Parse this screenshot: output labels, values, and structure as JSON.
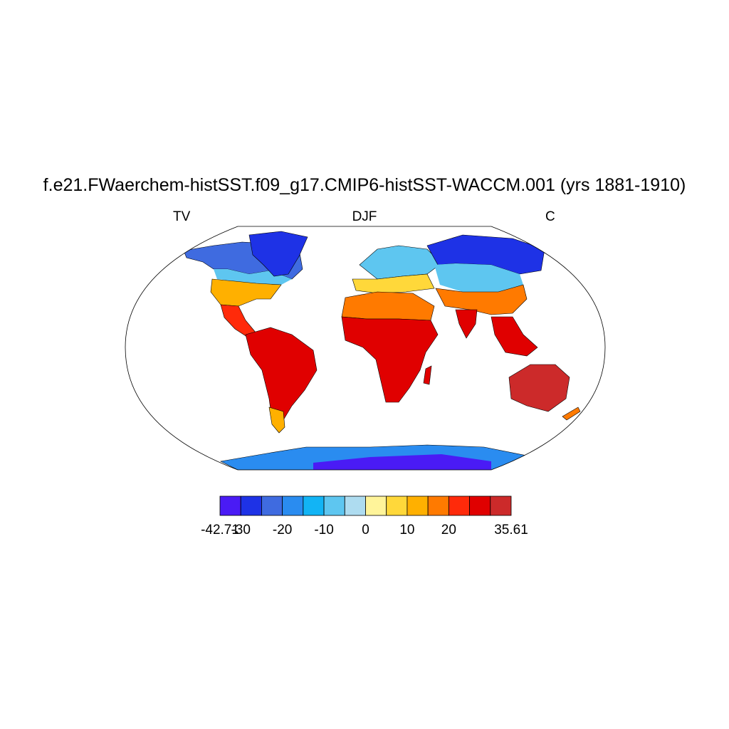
{
  "title": "f.e21.FWaerchem-histSST.f09_g17.CMIP6-histSST-WACCM.001 (yrs 1881-1910)",
  "left_string": "TV",
  "center_string": "DJF",
  "right_string": "C",
  "projection": "Robinson",
  "colorbar": {
    "colors": [
      "#4a1bf5",
      "#1e32e6",
      "#3f6be0",
      "#2a8cf0",
      "#12b4f5",
      "#5ec6f0",
      "#aedcf0",
      "#fff49a",
      "#ffd83a",
      "#ffb000",
      "#ff7a00",
      "#ff2a0a",
      "#e00000",
      "#cc2a2a"
    ],
    "labels": [
      "-42.71",
      "-30",
      "-20",
      "-10",
      "0",
      "10",
      "20",
      "35.61"
    ]
  },
  "regions": [
    {
      "name": "Antarctica",
      "color": "#2a8cf0"
    },
    {
      "name": "Greenland",
      "color": "#1e32e6"
    },
    {
      "name": "Siberia",
      "color": "#1e32e6"
    },
    {
      "name": "Africa",
      "color": "#e00000"
    },
    {
      "name": "South America",
      "color": "#e00000"
    },
    {
      "name": "Australia",
      "color": "#cc2a2a"
    }
  ]
}
